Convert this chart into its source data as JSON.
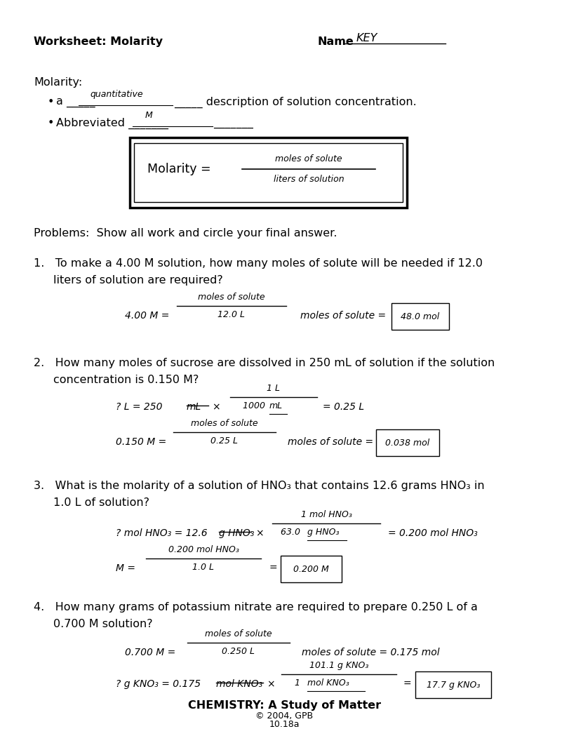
{
  "bg_color": "#ffffff",
  "header_title": "Worksheet: Molarity",
  "header_name": "Name",
  "header_key": "KEY",
  "molarity_header": "Molarity:",
  "bullet1a": "a _____",
  "bullet1_fill": "quantitative",
  "bullet1b": "_____ description of solution concentration.",
  "bullet2a": "Abbreviated _______",
  "bullet2_fill": "M",
  "bullet2b": "_______",
  "box_molarity": "Molarity = ",
  "box_num": "moles of solute",
  "box_den": "liters of solution",
  "problems_hdr": "Problems:  Show all work and circle your final answer.",
  "q1a": "1.   To make a 4.00 M solution, how many moles of solute will be needed if 12.0",
  "q1b": "     liters of solution are required?",
  "q2a": "2.   How many moles of sucrose are dissolved in 250 mL of solution if the solution",
  "q2b": "     concentration is 0.150 M?",
  "q3a": "3.   What is the molarity of a solution of HNO₃ that contains 12.6 grams HNO₃ in",
  "q3b": "     1.0 L of solution?",
  "q4a": "4.   How many grams of potassium nitrate are required to prepare 0.250 L of a",
  "q4b": "     0.700 M solution?",
  "footer1": "CHEMISTRY: A Study of Matter",
  "footer2": "© 2004, GPB",
  "footer3": "10.18a"
}
